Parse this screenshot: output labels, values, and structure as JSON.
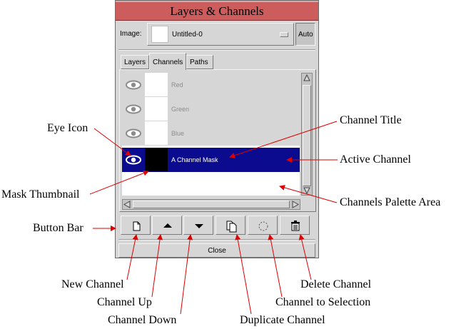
{
  "window": {
    "title": "Layers & Channels"
  },
  "image_selector": {
    "label": "Image:",
    "value": "Untitled-0",
    "auto_label": "Auto"
  },
  "tabs": [
    {
      "label": "Layers",
      "active": false
    },
    {
      "label": "Channels",
      "active": true
    },
    {
      "label": "Paths",
      "active": false
    }
  ],
  "channels": [
    {
      "name": "Red",
      "visible": true,
      "active": false
    },
    {
      "name": "Green",
      "visible": true,
      "active": false
    },
    {
      "name": "Blue",
      "visible": true,
      "active": false
    },
    {
      "name": "A Channel Mask",
      "visible": true,
      "active": true
    }
  ],
  "button_bar": [
    {
      "name": "new-channel",
      "icon": "new-page-icon"
    },
    {
      "name": "channel-up",
      "icon": "arrow-up-icon"
    },
    {
      "name": "channel-down",
      "icon": "arrow-down-icon"
    },
    {
      "name": "duplicate-channel",
      "icon": "duplicate-icon"
    },
    {
      "name": "channel-to-selection",
      "icon": "selection-circle-icon"
    },
    {
      "name": "delete-channel",
      "icon": "trash-icon"
    }
  ],
  "close_label": "Close",
  "annotations": {
    "eye_icon": "Eye Icon",
    "mask_thumbnail": "Mask Thumbnail",
    "button_bar": "Button Bar",
    "channel_title": "Channel Title",
    "active_channel": "Active Channel",
    "palette_area": "Channels Palette Area",
    "new_channel": "New Channel",
    "channel_up": "Channel Up",
    "channel_down": "Channel Down",
    "duplicate_channel": "Duplicate Channel",
    "channel_to_selection": "Channel to Selection",
    "delete_channel": "Delete Channel"
  },
  "colors": {
    "titlebar": "#cd5c5c",
    "active_row": "#0b0b8f",
    "dialog_bg": "#d6d6d6"
  }
}
